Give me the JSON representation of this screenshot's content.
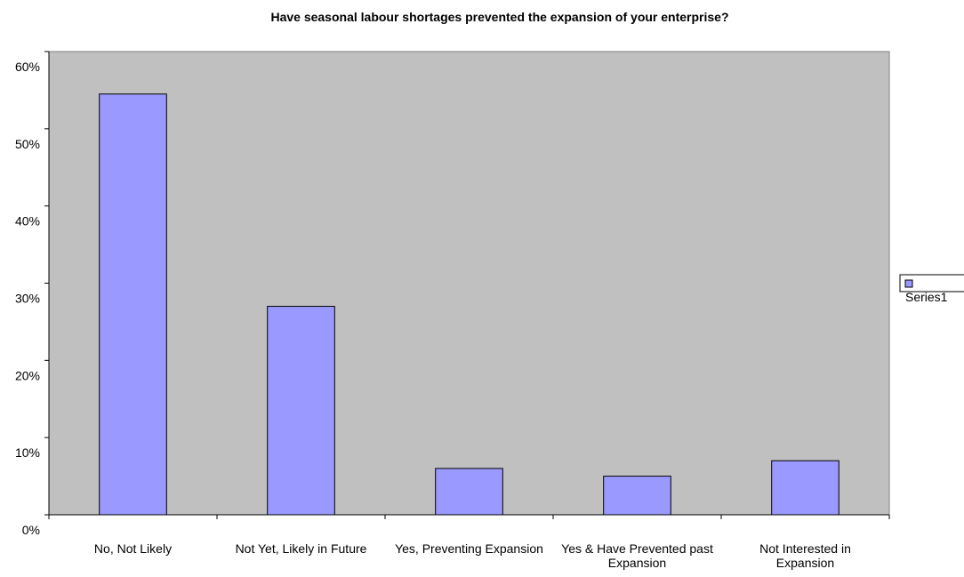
{
  "chart_data": {
    "type": "bar",
    "title": "Have seasonal labour shortages prevented the expansion of your enterprise?",
    "categories": [
      [
        "No, Not Likely"
      ],
      [
        "Not Yet, Likely in Future"
      ],
      [
        "Yes, Preventing Expansion"
      ],
      [
        "Yes & Have Prevented past",
        "Expansion"
      ],
      [
        "Not Interested in",
        "Expansion"
      ]
    ],
    "series": [
      {
        "name": "Series1",
        "color": "#9999ff",
        "values": [
          0.545,
          0.27,
          0.06,
          0.05,
          0.07
        ]
      }
    ],
    "y_tick_labels": [
      "0%",
      "10%",
      "20%",
      "30%",
      "40%",
      "50%",
      "60%"
    ],
    "ylim": [
      0,
      0.6
    ],
    "xlabel": "",
    "ylabel": "",
    "plot_background": "#c0c0c0",
    "bar_outline": "#000000",
    "grid": false,
    "legend_position": "right"
  }
}
